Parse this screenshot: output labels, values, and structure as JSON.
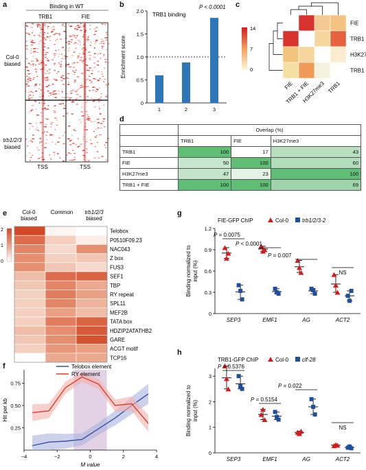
{
  "panels": {
    "a": {
      "letter": "a",
      "title": "Binding in WT",
      "cols": [
        "TRB1",
        "FIE"
      ],
      "rows": [
        "Col-0 biased",
        "trb1/2/3 biased"
      ],
      "row_lines": [
        [
          "Col-0",
          "biased"
        ],
        [
          "trb1/2/3",
          "biased"
        ]
      ],
      "tss": [
        "TSS",
        "TSS"
      ]
    },
    "b": {
      "letter": "b",
      "title": "TRB1 binding",
      "pvalue": "P < 0.0001",
      "ylabel": "Enrichment score",
      "yticks": [
        "0",
        "0.5",
        "1.0",
        "1.5",
        "2.0"
      ],
      "xticks": [
        "1",
        "2",
        "3"
      ],
      "values": [
        0.6,
        0.88,
        1.85
      ],
      "baseline": 1.0,
      "bar_color": "#2f76b9"
    },
    "c": {
      "letter": "c",
      "row_labels": [
        "FIE",
        "TRB1 + FIE",
        "H3K27me3",
        "TRB1"
      ],
      "col_labels": [
        "FIE",
        "TRB1 + FIE",
        "H3K27me3",
        "TRB1"
      ],
      "legend_ticks": [
        "14",
        "7",
        "0"
      ],
      "cells": [
        [
          "#ffffff",
          "#d8322e",
          "#f3c893",
          "#f2c47f"
        ],
        [
          "#d9332d",
          "#ffffff",
          "#f6d69c",
          "#e7633f"
        ],
        [
          "#f2c47c",
          "#f6d69c",
          "#ffffff",
          "#faeccd"
        ],
        [
          "#f7dfa3",
          "#f09a5a",
          "#f4f2de",
          "#ffffff"
        ]
      ]
    },
    "d": {
      "letter": "d",
      "header": "Overlap (%)",
      "columns": [
        "TRB1",
        "FIE",
        "H3K27me3"
      ],
      "rows": [
        {
          "label": "TRB1",
          "values": [
            "100",
            "17",
            "43"
          ],
          "colors": [
            "#5fbd76",
            "#ffffff",
            "#b7dfbf"
          ]
        },
        {
          "label": "FIE",
          "values": [
            "50",
            "100",
            "60"
          ],
          "colors": [
            "#c6e6cd",
            "#5fbd76",
            "#b2ddbb"
          ]
        },
        {
          "label": "H3K27me3",
          "values": [
            "47",
            "23",
            "100"
          ],
          "colors": [
            "#c3e4c9",
            "#e5f3e7",
            "#5fbd76"
          ]
        },
        {
          "label": "TRB1 + FIE",
          "values": [
            "100",
            "100",
            "69"
          ],
          "colors": [
            "#5fbd76",
            "#5fbd76",
            "#9fd4aa"
          ]
        }
      ]
    },
    "e": {
      "letter": "e",
      "col_headers": [
        [
          "Col-0",
          "biased"
        ],
        [
          "Common"
        ],
        [
          "trb1/2/3",
          "biased"
        ]
      ],
      "legend_ticks": [
        "2",
        "1",
        "0"
      ],
      "motifs": [
        "Telobox",
        "P0510F09.23",
        "NAC043",
        "Z box",
        "FUS3",
        "SEF1",
        "TBP",
        "RY repeat",
        "SPL11",
        "MEF2B",
        "TATA box",
        "HDZIP2ATATHB2",
        "GARE",
        "ACGT motif",
        "TCP16"
      ],
      "values": [
        [
          2.0,
          0.1,
          0.0
        ],
        [
          1.6,
          0.5,
          0.2
        ],
        [
          1.3,
          0.4,
          1.2
        ],
        [
          1.2,
          0.5,
          0.6
        ],
        [
          1.2,
          0.6,
          0.4
        ],
        [
          0.7,
          1.6,
          1.7
        ],
        [
          0.6,
          1.3,
          0.9
        ],
        [
          0.5,
          1.4,
          1.0
        ],
        [
          0.5,
          1.3,
          0.8
        ],
        [
          0.5,
          1.0,
          0.7
        ],
        [
          0.5,
          1.4,
          1.7
        ],
        [
          0.7,
          1.2,
          1.8
        ],
        [
          0.6,
          1.2,
          1.9
        ],
        [
          0.5,
          1.1,
          1.0
        ],
        [
          0.0,
          0.9,
          0.9
        ]
      ]
    },
    "f": {
      "letter": "f",
      "legend": [
        "Telobox element",
        "RY element"
      ],
      "ylabel": "Hit per kb",
      "xlabel": "M value",
      "xticks": [
        "-4",
        "-2",
        "0",
        "2",
        "4"
      ],
      "yticks": [
        "0.25",
        "0.50",
        "0.75"
      ],
      "highlight_range": [
        -1,
        1
      ],
      "telobox": {
        "x": [
          -3.5,
          -2.5,
          -1.5,
          -0.5,
          0.5,
          1.5,
          2.5,
          3.5
        ],
        "y": [
          0.05,
          0.09,
          0.1,
          0.12,
          0.24,
          0.36,
          0.5,
          0.63
        ],
        "color": "#3b4ea3"
      },
      "ry": {
        "x": [
          -3.5,
          -2.5,
          -1.5,
          -0.5,
          0.5,
          1.5,
          2.5,
          3.5
        ],
        "y": [
          0.42,
          0.44,
          0.7,
          0.82,
          0.74,
          0.5,
          0.52,
          0.3
        ],
        "color": "#e03c31"
      }
    },
    "g": {
      "letter": "g",
      "title": "FIE-GFP ChIP",
      "legend": [
        "Col-0",
        "trb1/2/3-2"
      ],
      "ylabel": "Binding normalized to input (%)",
      "yticks": [
        "0",
        "0.3",
        "0.6",
        "0.9",
        "1.2"
      ],
      "genes": [
        "SEP3",
        "EMF1",
        "AG",
        "ACT2"
      ],
      "stats": [
        "P = 0.0075",
        "P < 0.0001",
        "P = 0.007",
        "NS"
      ],
      "col0": [
        [
          0.93,
          0.78,
          0.85
        ],
        [
          0.95,
          0.88,
          0.9
        ],
        [
          0.75,
          0.65,
          0.58
        ],
        [
          0.55,
          0.4,
          0.3
        ]
      ],
      "mutant": [
        [
          0.4,
          0.32,
          0.2
        ],
        [
          0.35,
          0.3,
          0.28
        ],
        [
          0.35,
          0.33,
          0.28
        ],
        [
          0.25,
          0.18,
          0.32
        ]
      ]
    },
    "h": {
      "letter": "h",
      "title": "TRB1-GFP ChIP",
      "legend": [
        "Col-0",
        "clf-28"
      ],
      "ylabel": "Binding normalized to input (%)",
      "yticks": [
        "0",
        "1",
        "2",
        "3"
      ],
      "genes": [
        "SEP3",
        "EMF1",
        "AG",
        "ACT2"
      ],
      "stats": [
        "P = 0.5376",
        "P = 0.5154",
        "P = 0.022",
        "NS"
      ],
      "col0": [
        [
          3.4,
          2.9,
          2.5
        ],
        [
          1.5,
          1.7,
          1.3
        ],
        [
          0.8,
          0.75,
          0.85
        ],
        [
          0.28,
          0.32,
          0.3
        ]
      ],
      "mutant": [
        [
          3.0,
          2.6,
          2.5
        ],
        [
          1.6,
          1.4,
          1.3
        ],
        [
          2.1,
          1.8,
          1.5
        ],
        [
          0.2,
          0.25,
          0.18
        ]
      ]
    }
  }
}
